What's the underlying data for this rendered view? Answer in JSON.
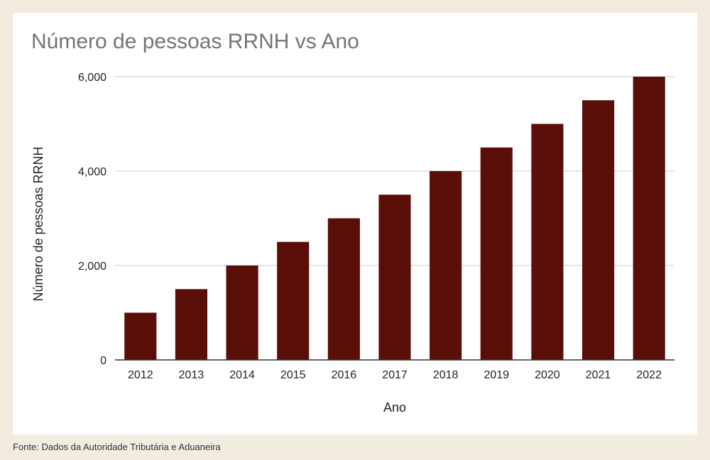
{
  "chart_data": {
    "type": "bar",
    "title": "Número de pessoas RRNH vs Ano",
    "xlabel": "Ano",
    "ylabel": "Número de pessoas RRNH",
    "categories": [
      "2012",
      "2013",
      "2014",
      "2015",
      "2016",
      "2017",
      "2018",
      "2019",
      "2020",
      "2021",
      "2022"
    ],
    "values": [
      1000,
      1500,
      2000,
      2500,
      3000,
      3500,
      4000,
      4500,
      5000,
      5500,
      6000
    ],
    "ylim": [
      0,
      6000
    ],
    "yticks": [
      0,
      2000,
      4000,
      6000
    ],
    "ytick_labels": [
      "0",
      "2,000",
      "4,000",
      "6,000"
    ],
    "grid": true,
    "bar_color": "#5a0e08",
    "grid_color": "#cccccc"
  },
  "footer": {
    "source": "Fonte: Dados da Autoridade Tributária e Aduaneira"
  },
  "colors": {
    "page_background": "#f2ebe0",
    "card_background": "#ffffff",
    "title_color": "#757575"
  }
}
